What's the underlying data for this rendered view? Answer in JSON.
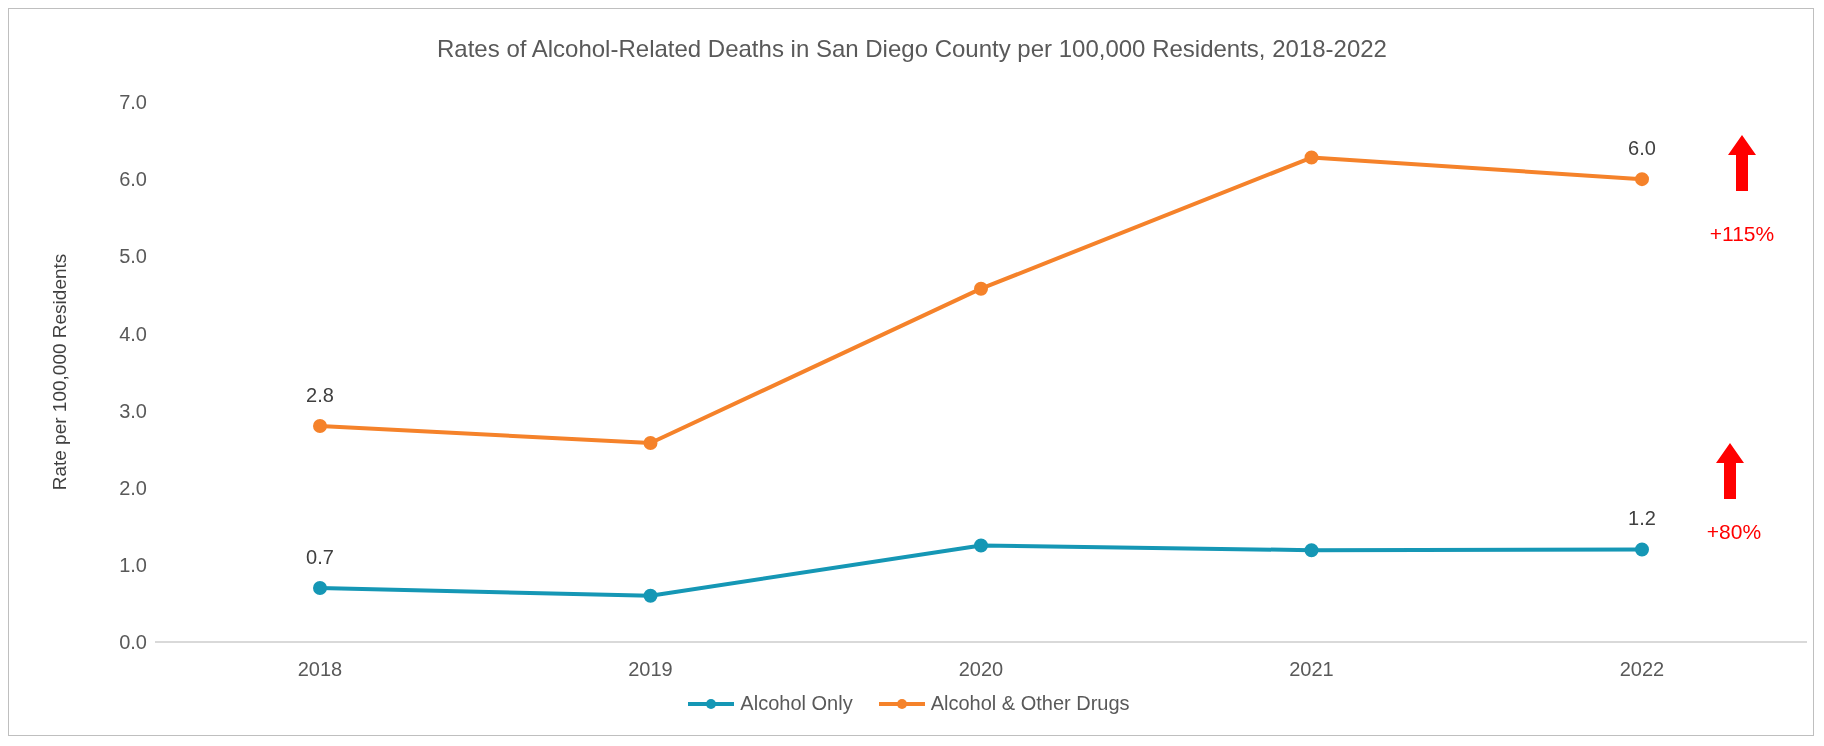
{
  "chart_data": {
    "type": "line",
    "title": "Rates of Alcohol-Related Deaths in San Diego County per 100,000 Residents, 2018-2022",
    "ylabel": "Rate per 100,000 Residents",
    "categories": [
      "2018",
      "2019",
      "2020",
      "2021",
      "2022"
    ],
    "series": [
      {
        "name": "Alcohol Only",
        "color": "#1597b5",
        "values": [
          0.7,
          0.6,
          1.25,
          1.19,
          1.2
        ],
        "value_labels": [
          "0.7",
          null,
          null,
          null,
          "1.2"
        ]
      },
      {
        "name": "Alcohol & Other Drugs",
        "color": "#f5822a",
        "values": [
          2.8,
          2.58,
          4.58,
          6.28,
          6.0
        ],
        "value_labels": [
          "2.8",
          null,
          null,
          null,
          "6.0"
        ]
      }
    ],
    "ylim": [
      0,
      7
    ],
    "yticks": [
      {
        "value": 0,
        "label": "0.0"
      },
      {
        "value": 1,
        "label": "1.0"
      },
      {
        "value": 2,
        "label": "2.0"
      },
      {
        "value": 3,
        "label": "3.0"
      },
      {
        "value": 4,
        "label": "4.0"
      },
      {
        "value": 5,
        "label": "5.0"
      },
      {
        "value": 6,
        "label": "6.0"
      },
      {
        "value": 7,
        "label": "7.0"
      }
    ],
    "annotations": [
      "+115%",
      "+80%"
    ],
    "grid": false,
    "legend": "bottom",
    "marker": "circle",
    "line_style": "solid"
  }
}
